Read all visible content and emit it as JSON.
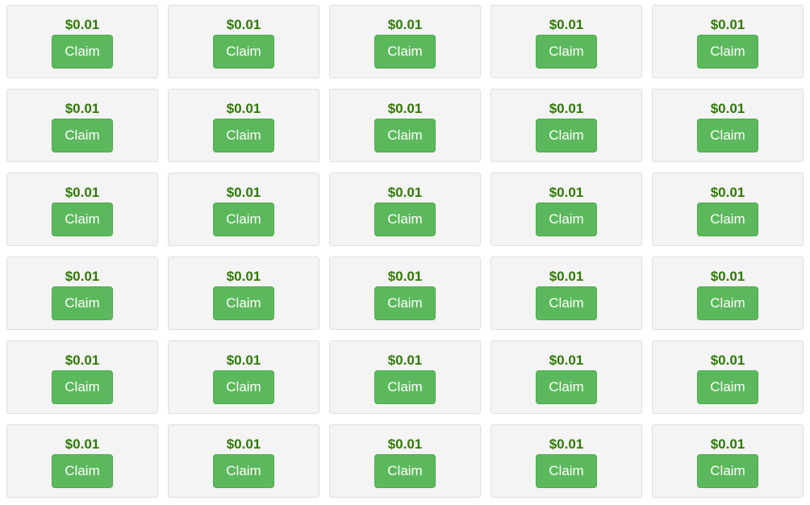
{
  "colors": {
    "price": "#2f7a06",
    "button_bg": "#5cb85c",
    "button_border": "#4cae4c",
    "card_bg": "#f4f4f4"
  },
  "cards": [
    {
      "price": "$0.01",
      "button": "Claim"
    },
    {
      "price": "$0.01",
      "button": "Claim"
    },
    {
      "price": "$0.01",
      "button": "Claim"
    },
    {
      "price": "$0.01",
      "button": "Claim"
    },
    {
      "price": "$0.01",
      "button": "Claim"
    },
    {
      "price": "$0.01",
      "button": "Claim"
    },
    {
      "price": "$0.01",
      "button": "Claim"
    },
    {
      "price": "$0.01",
      "button": "Claim"
    },
    {
      "price": "$0.01",
      "button": "Claim"
    },
    {
      "price": "$0.01",
      "button": "Claim"
    },
    {
      "price": "$0.01",
      "button": "Claim"
    },
    {
      "price": "$0.01",
      "button": "Claim"
    },
    {
      "price": "$0.01",
      "button": "Claim"
    },
    {
      "price": "$0.01",
      "button": "Claim"
    },
    {
      "price": "$0.01",
      "button": "Claim"
    },
    {
      "price": "$0.01",
      "button": "Claim"
    },
    {
      "price": "$0.01",
      "button": "Claim"
    },
    {
      "price": "$0.01",
      "button": "Claim"
    },
    {
      "price": "$0.01",
      "button": "Claim"
    },
    {
      "price": "$0.01",
      "button": "Claim"
    },
    {
      "price": "$0.01",
      "button": "Claim"
    },
    {
      "price": "$0.01",
      "button": "Claim"
    },
    {
      "price": "$0.01",
      "button": "Claim"
    },
    {
      "price": "$0.01",
      "button": "Claim"
    },
    {
      "price": "$0.01",
      "button": "Claim"
    },
    {
      "price": "$0.01",
      "button": "Claim"
    },
    {
      "price": "$0.01",
      "button": "Claim"
    },
    {
      "price": "$0.01",
      "button": "Claim"
    },
    {
      "price": "$0.01",
      "button": "Claim"
    },
    {
      "price": "$0.01",
      "button": "Claim"
    }
  ]
}
